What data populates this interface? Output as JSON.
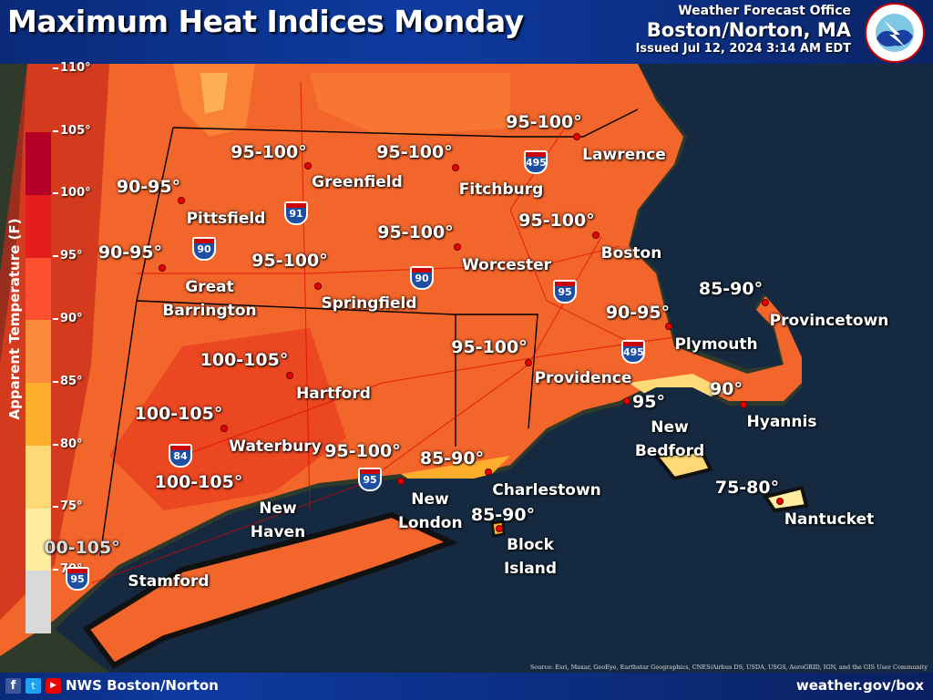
{
  "header": {
    "title": "Maximum Heat Indices Monday",
    "office_line1": "Weather Forecast Office",
    "office_line2": "Boston/Norton, MA",
    "issued": "Issued Jul 12, 2024 3:14 AM EDT",
    "logo_text": "NATIONAL WEATHER SERVICE"
  },
  "legend": {
    "title": "Apparent Temperature (F)",
    "ticks": [
      "110°",
      "105°",
      "100°",
      "95°",
      "90°",
      "85°",
      "80°",
      "75°",
      "70°"
    ],
    "colors": [
      "#b40026",
      "#e31d1c",
      "#fc5030",
      "#fd8a3b",
      "#feae2c",
      "#fed976",
      "#ffeda0",
      "#d9d9d9"
    ]
  },
  "values": [
    "95-100°",
    "95-100°",
    "95-100°",
    "90-95°",
    "95-100°",
    "95-100°",
    "90-95°",
    "95-100°",
    "85-90°",
    "90-95°",
    "100-105°",
    "95-100°",
    "95°",
    "90°",
    "100-105°",
    "100-105°",
    "95-100°",
    "85-90°",
    "85-90°",
    "75-80°",
    "00-105°"
  ],
  "cities": [
    "Greenfield",
    "Fitchburg",
    "Lawrence",
    "Pittsfield",
    "Worcester",
    "Boston",
    "Great Barrington",
    "Springfield",
    "Provincetown",
    "Plymouth",
    "Hartford",
    "Providence",
    "New Bedford",
    "Hyannis",
    "Waterbury",
    "New Haven",
    "New London",
    "Charlestown",
    "Block Island",
    "Nantucket",
    "Stamford"
  ],
  "interstates": [
    "495",
    "91",
    "90",
    "90",
    "95",
    "495",
    "84",
    "95",
    "95"
  ],
  "footer": {
    "handle": "NWS Boston/Norton",
    "url": "weather.gov/box",
    "social_icons": [
      "facebook-icon",
      "twitter-icon",
      "youtube-icon"
    ],
    "source": "Source: Esri, Maxar, GeoEye, Earthstar Geographics, CNES/Airbus DS, USDA, USGS, AeroGRID, IGN, and the GIS User Community"
  }
}
